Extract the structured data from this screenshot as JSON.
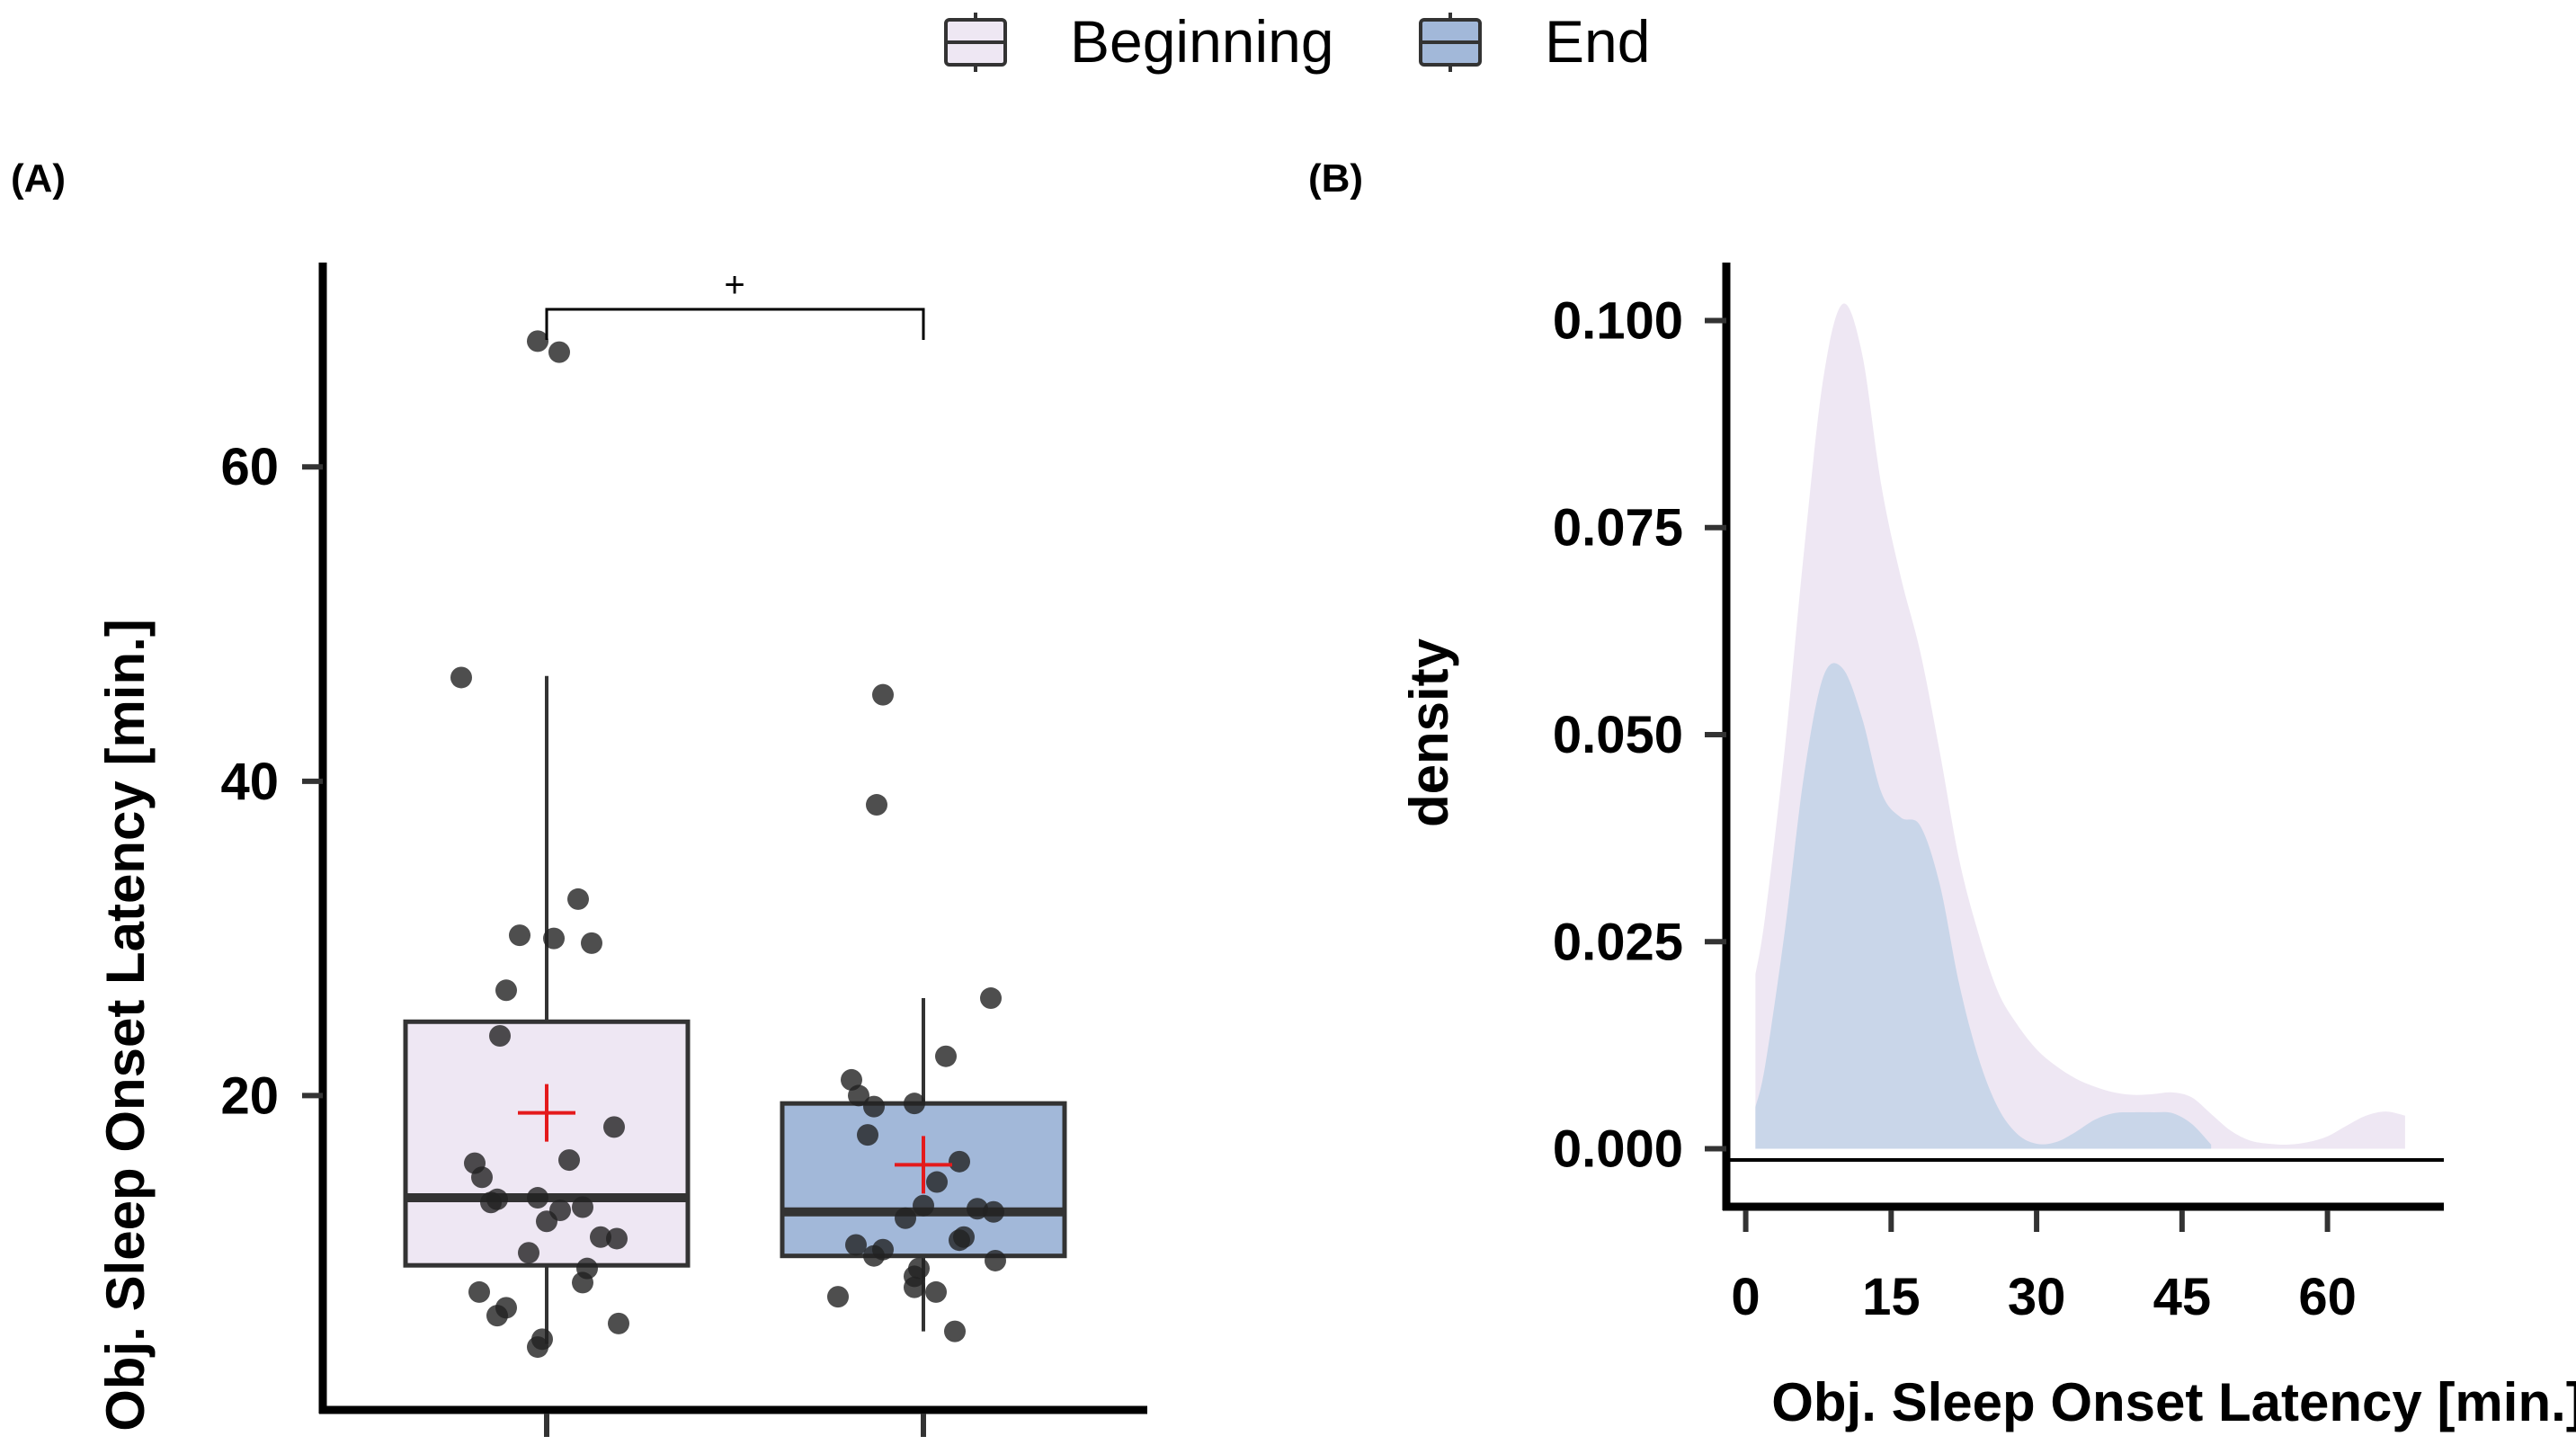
{
  "legend": {
    "items": [
      {
        "label": "Beginning",
        "fill": "#EEE7F3"
      },
      {
        "label": "End",
        "fill": "#A2B8D9"
      }
    ]
  },
  "chart_data": [
    {
      "panel": "(A)",
      "type": "box",
      "ylabel": "Obj. Sleep Onset Latency [min.]",
      "xlabel": "",
      "ylim": [
        0,
        73
      ],
      "yticks": [
        20,
        40,
        60
      ],
      "significance": "+",
      "groups": [
        {
          "name": "Beginning",
          "fill": "#EEE7F3",
          "q1": 9.2,
          "median": 13.5,
          "q3": 24.7,
          "whisker_low": 4.2,
          "whisker_high": 46.7,
          "mean": 18.9,
          "points": [
            68.0,
            67.3,
            46.6,
            32.5,
            30.2,
            30.0,
            29.7,
            26.7,
            23.8,
            18.0,
            15.9,
            15.7,
            14.8,
            13.5,
            13.4,
            13.2,
            12.9,
            12.7,
            12.0,
            11.0,
            10.9,
            10.0,
            9.0,
            8.1,
            7.5,
            6.5,
            6.0,
            5.5,
            4.5,
            4.0
          ]
        },
        {
          "name": "End",
          "fill": "#A2B8D9",
          "q1": 9.8,
          "median": 12.6,
          "q3": 19.5,
          "whisker_low": 5.0,
          "whisker_high": 26.2,
          "mean": 15.6,
          "points": [
            45.5,
            38.5,
            26.2,
            22.5,
            21.0,
            20.0,
            19.5,
            19.3,
            17.5,
            15.8,
            14.5,
            13.0,
            12.8,
            12.6,
            12.2,
            11.0,
            10.8,
            10.5,
            10.2,
            9.8,
            9.5,
            9.0,
            8.5,
            7.8,
            7.5,
            7.2,
            5.0
          ]
        }
      ]
    },
    {
      "panel": "(B)",
      "type": "area",
      "xlabel": "Obj. Sleep Onset Latency [min.]",
      "ylabel": "density",
      "xlim": [
        -2,
        72
      ],
      "ylim": [
        -0.007,
        0.107
      ],
      "xticks": [
        0,
        15,
        30,
        45,
        60
      ],
      "yticks": [
        0.0,
        0.025,
        0.05,
        0.075,
        0.1
      ],
      "ytick_labels": [
        "0.000",
        "0.025",
        "0.050",
        "0.075",
        "0.100"
      ],
      "series": [
        {
          "name": "Beginning",
          "fill": "#EEE7F3",
          "x": [
            1,
            2,
            4,
            6,
            8,
            10,
            12,
            14,
            16,
            18,
            20,
            22,
            24,
            26,
            28,
            30,
            32,
            34,
            36,
            38,
            40,
            42,
            44,
            46,
            48,
            50,
            52,
            54,
            56,
            58,
            60,
            62,
            64,
            66,
            68
          ],
          "y": [
            0.021,
            0.028,
            0.048,
            0.072,
            0.093,
            0.102,
            0.096,
            0.08,
            0.069,
            0.06,
            0.048,
            0.035,
            0.026,
            0.019,
            0.015,
            0.012,
            0.01,
            0.0085,
            0.0075,
            0.0068,
            0.0065,
            0.0066,
            0.0068,
            0.0062,
            0.0042,
            0.0022,
            0.001,
            0.0006,
            0.0005,
            0.0008,
            0.0015,
            0.0028,
            0.004,
            0.0045,
            0.004
          ]
        },
        {
          "name": "End",
          "fill": "#C9D6E9",
          "x": [
            1,
            2,
            4,
            6,
            8,
            10,
            12,
            14,
            16,
            18,
            20,
            22,
            24,
            26,
            28,
            30,
            32,
            34,
            36,
            38,
            40,
            42,
            44,
            46,
            48
          ],
          "y": [
            0.005,
            0.01,
            0.026,
            0.045,
            0.057,
            0.058,
            0.052,
            0.043,
            0.04,
            0.039,
            0.032,
            0.02,
            0.011,
            0.005,
            0.0018,
            0.0006,
            0.0008,
            0.002,
            0.0035,
            0.0043,
            0.0044,
            0.0044,
            0.0043,
            0.003,
            0.0005
          ]
        }
      ]
    }
  ]
}
